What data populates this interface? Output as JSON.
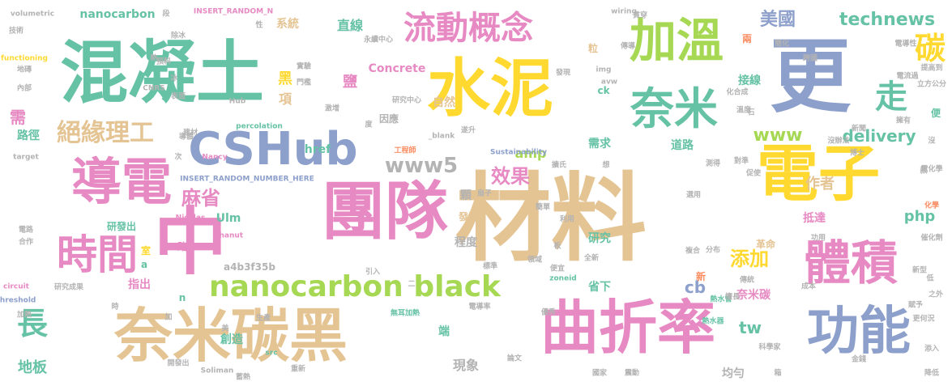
{
  "colors": {
    "teal": "#66c2a5",
    "orange": "#fc8d62",
    "blue": "#8da0cb",
    "pink": "#e78ac3",
    "green": "#a6d854",
    "yellow": "#ffd92f",
    "tan": "#e5c494",
    "gray": "#b3b3b3"
  },
  "words": [
    {
      "text": "材料",
      "color": "tan"
    },
    {
      "text": "團隊",
      "color": "pink"
    },
    {
      "text": "混凝土",
      "color": "teal"
    },
    {
      "text": "水泥",
      "color": "yellow"
    },
    {
      "text": "更",
      "color": "blue"
    },
    {
      "text": "電子",
      "color": "yellow"
    },
    {
      "text": "奈米碳黑",
      "color": "tan"
    },
    {
      "text": "中",
      "color": "pink"
    },
    {
      "text": "曲折率",
      "color": "pink"
    },
    {
      "text": "導電",
      "color": "pink"
    },
    {
      "text": "加溫",
      "color": "green"
    },
    {
      "text": "奈米",
      "color": "teal"
    },
    {
      "text": "CSHub",
      "color": "blue"
    },
    {
      "text": "功能",
      "color": "blue"
    },
    {
      "text": "時間",
      "color": "pink"
    },
    {
      "text": "體積",
      "color": "pink"
    },
    {
      "text": "nanocarbon black",
      "color": "green"
    },
    {
      "text": "流動概念",
      "color": "pink"
    },
    {
      "text": "走",
      "color": "teal"
    },
    {
      "text": "碳",
      "color": "yellow"
    },
    {
      "text": "長",
      "color": "teal"
    },
    {
      "text": "絕緣理工",
      "color": "tan"
    },
    {
      "text": "www5",
      "color": "gray"
    },
    {
      "text": "效果",
      "color": "pink"
    },
    {
      "text": "麻省",
      "color": "pink"
    },
    {
      "text": "添加",
      "color": "yellow"
    },
    {
      "text": "technews",
      "color": "teal"
    },
    {
      "text": "美國",
      "color": "blue"
    },
    {
      "text": "www",
      "color": "green"
    },
    {
      "text": "delivery",
      "color": "teal"
    },
    {
      "text": "amp",
      "color": "green"
    },
    {
      "text": "需求",
      "color": "teal"
    },
    {
      "text": "道路",
      "color": "teal"
    },
    {
      "text": "作者",
      "color": "tan"
    },
    {
      "text": "php",
      "color": "teal"
    },
    {
      "text": "cb",
      "color": "blue"
    },
    {
      "text": "tw",
      "color": "teal"
    },
    {
      "text": "地板",
      "color": "teal"
    },
    {
      "text": "現象",
      "color": "gray"
    },
    {
      "text": "均勻",
      "color": "gray"
    },
    {
      "text": "奈米碳",
      "color": "pink"
    },
    {
      "text": "Concrete",
      "color": "pink"
    },
    {
      "text": "直線",
      "color": "teal"
    },
    {
      "text": "系統",
      "color": "tan"
    },
    {
      "text": "接線",
      "color": "teal"
    },
    {
      "text": "抵達",
      "color": "pink"
    },
    {
      "text": "研究",
      "color": "teal"
    },
    {
      "text": "程度",
      "color": "gray"
    },
    {
      "text": "省下",
      "color": "teal"
    },
    {
      "text": "革命",
      "color": "tan"
    },
    {
      "text": "Ulm",
      "color": "teal"
    },
    {
      "text": "指出",
      "color": "pink"
    },
    {
      "text": "a4b3f35b",
      "color": "gray"
    },
    {
      "text": "路徑",
      "color": "teal"
    },
    {
      "text": "創造",
      "color": "teal"
    },
    {
      "text": "nanocarbon",
      "color": "teal"
    },
    {
      "text": "自然",
      "color": "tan"
    },
    {
      "text": "因應",
      "color": "gray"
    },
    {
      "text": "鹽",
      "color": "pink"
    },
    {
      "text": "黑",
      "color": "yellow"
    },
    {
      "text": "項",
      "color": "tan"
    },
    {
      "text": "需",
      "color": "pink"
    },
    {
      "text": "兩",
      "color": "orange"
    },
    {
      "text": "粒",
      "color": "tan"
    },
    {
      "text": "顆",
      "color": "gray"
    },
    {
      "text": "發熱",
      "color": "tan"
    },
    {
      "text": "研發出",
      "color": "teal"
    },
    {
      "text": "端",
      "color": "teal"
    },
    {
      "text": "路",
      "color": "pink"
    },
    {
      "text": "室",
      "color": "yellow"
    },
    {
      "text": "href",
      "color": "teal"
    },
    {
      "text": "n",
      "color": "teal"
    },
    {
      "text": "a",
      "color": "teal"
    },
    {
      "text": "新",
      "color": "orange"
    },
    {
      "text": "便",
      "color": "teal"
    },
    {
      "text": "ck",
      "color": "teal"
    },
    {
      "text": "INSERT_RANDOM_N",
      "color": "pink"
    },
    {
      "text": "INSERT_RANDOM_NUMBER_HERE",
      "color": "blue"
    },
    {
      "text": "volumetric",
      "color": "gray"
    },
    {
      "text": "functioning",
      "color": "yellow"
    },
    {
      "text": "percolation",
      "color": "teal"
    },
    {
      "text": "Sustainability",
      "color": "blue"
    },
    {
      "text": "_blank",
      "color": "gray"
    },
    {
      "text": "Nancy",
      "color": "pink"
    },
    {
      "text": "Nicolas",
      "color": "pink"
    },
    {
      "text": "Chanut",
      "color": "pink"
    },
    {
      "text": "Soliman",
      "color": "gray"
    },
    {
      "text": "zoneid",
      "color": "teal"
    },
    {
      "text": "CNRS",
      "color": "gray"
    },
    {
      "text": "circuit",
      "color": "pink"
    },
    {
      "text": "threshold",
      "color": "blue"
    },
    {
      "text": "target",
      "color": "gray"
    },
    {
      "text": "wiring",
      "color": "gray"
    },
    {
      "text": "img",
      "color": "gray"
    },
    {
      "text": "avw",
      "color": "gray"
    },
    {
      "text": "Hub",
      "color": "gray"
    },
    {
      "text": "src",
      "color": "teal"
    },
    {
      "text": "研究中心",
      "color": "gray"
    },
    {
      "text": "工程師",
      "color": "orange"
    },
    {
      "text": "跨國",
      "color": "gray"
    },
    {
      "text": "立方公分",
      "color": "gray"
    },
    {
      "text": "科學家",
      "color": "gray"
    },
    {
      "text": "熱水器",
      "color": "teal"
    },
    {
      "text": "熱水管",
      "color": "teal"
    },
    {
      "text": "無耳加熱",
      "color": "teal"
    },
    {
      "text": "電導率",
      "color": "gray"
    },
    {
      "text": "催化劑",
      "color": "gray"
    },
    {
      "text": "化學",
      "color": "orange"
    },
    {
      "text": "電化學",
      "color": "gray"
    },
    {
      "text": "永續中心",
      "color": "gray"
    },
    {
      "text": "電導性",
      "color": "gray"
    },
    {
      "text": "電流過",
      "color": "gray"
    },
    {
      "text": "提高到",
      "color": "gray"
    },
    {
      "text": "實驗",
      "color": "gray"
    },
    {
      "text": "門檻",
      "color": "gray"
    },
    {
      "text": "激增",
      "color": "gray"
    },
    {
      "text": "導體",
      "color": "gray"
    },
    {
      "text": "技術",
      "color": "gray"
    },
    {
      "text": "地磚",
      "color": "gray"
    },
    {
      "text": "內部",
      "color": "gray"
    },
    {
      "text": "電路",
      "color": "gray"
    },
    {
      "text": "合作",
      "color": "gray"
    },
    {
      "text": "生產",
      "color": "gray"
    },
    {
      "text": "加熱",
      "color": "gray"
    },
    {
      "text": "開發出",
      "color": "gray"
    },
    {
      "text": "重新",
      "color": "gray"
    },
    {
      "text": "蓄熱",
      "color": "gray"
    },
    {
      "text": "國家",
      "color": "gray"
    },
    {
      "text": "震動",
      "color": "gray"
    },
    {
      "text": "論文",
      "color": "gray"
    },
    {
      "text": "更何況",
      "color": "gray"
    },
    {
      "text": "添入",
      "color": "gray"
    },
    {
      "text": "利用",
      "color": "gray"
    },
    {
      "text": "分布",
      "color": "gray"
    },
    {
      "text": "全新",
      "color": "gray"
    },
    {
      "text": "標準",
      "color": "gray"
    },
    {
      "text": "引入",
      "color": "gray"
    },
    {
      "text": "領域",
      "color": "gray"
    },
    {
      "text": "便宜",
      "color": "gray"
    },
    {
      "text": "測得",
      "color": "gray"
    },
    {
      "text": "對準",
      "color": "gray"
    },
    {
      "text": "溫度",
      "color": "gray"
    },
    {
      "text": "化合成",
      "color": "gray"
    },
    {
      "text": "成本",
      "color": "gray"
    },
    {
      "text": "賦予",
      "color": "gray"
    },
    {
      "text": "優秀",
      "color": "gray"
    },
    {
      "text": "擅長",
      "color": "gray"
    },
    {
      "text": "傳統",
      "color": "gray"
    },
    {
      "text": "遂升",
      "color": "gray"
    },
    {
      "text": "扇子",
      "color": "gray"
    },
    {
      "text": "簡單",
      "color": "gray"
    },
    {
      "text": "發現",
      "color": "gray"
    },
    {
      "text": "預料",
      "color": "gray"
    },
    {
      "text": "除冰",
      "color": "gray"
    },
    {
      "text": "表面",
      "color": "gray"
    },
    {
      "text": "建材",
      "color": "gray"
    },
    {
      "text": "複合",
      "color": "gray"
    },
    {
      "text": "選用",
      "color": "gray"
    },
    {
      "text": "功用",
      "color": "gray"
    },
    {
      "text": "新型",
      "color": "gray"
    },
    {
      "text": "新聞",
      "color": "gray"
    },
    {
      "text": "博士",
      "color": "gray"
    },
    {
      "text": "擁有",
      "color": "gray"
    },
    {
      "text": "簡化",
      "color": "gray"
    },
    {
      "text": "沒辦法",
      "color": "gray"
    },
    {
      "text": "研究成果",
      "color": "gray"
    },
    {
      "text": "金錢",
      "color": "gray"
    },
    {
      "text": "傳導",
      "color": "gray"
    },
    {
      "text": "之外",
      "color": "gray"
    },
    {
      "text": "降低",
      "color": "gray"
    },
    {
      "text": "促使",
      "color": "gray"
    },
    {
      "text": "低",
      "color": "gray"
    },
    {
      "text": "款",
      "color": "gray"
    },
    {
      "text": "石",
      "color": "gray"
    },
    {
      "text": "貫穿",
      "color": "gray"
    },
    {
      "text": "擴氏",
      "color": "gray"
    },
    {
      "text": "想",
      "color": "gray"
    },
    {
      "text": "時",
      "color": "gray"
    },
    {
      "text": "加",
      "color": "gray"
    },
    {
      "text": "美",
      "color": "gray"
    },
    {
      "text": "二",
      "color": "gray"
    },
    {
      "text": "次",
      "color": "gray"
    },
    {
      "text": "段",
      "color": "gray"
    },
    {
      "text": "性",
      "color": "gray"
    },
    {
      "text": "度",
      "color": "gray"
    },
    {
      "text": "熱",
      "color": "gray"
    },
    {
      "text": "冰",
      "color": "gray"
    },
    {
      "text": "板",
      "color": "gray"
    },
    {
      "text": "箱",
      "color": "gray"
    },
    {
      "text": "沒",
      "color": "gray"
    },
    {
      "text": "型",
      "color": "gray"
    },
    {
      "text": "要",
      "color": "gray"
    },
    {
      "text": "的",
      "color": "gray"
    },
    {
      "text": "量",
      "color": "gray"
    },
    {
      "text": "率",
      "color": "gray"
    },
    {
      "text": "幫",
      "color": "gray"
    }
  ]
}
